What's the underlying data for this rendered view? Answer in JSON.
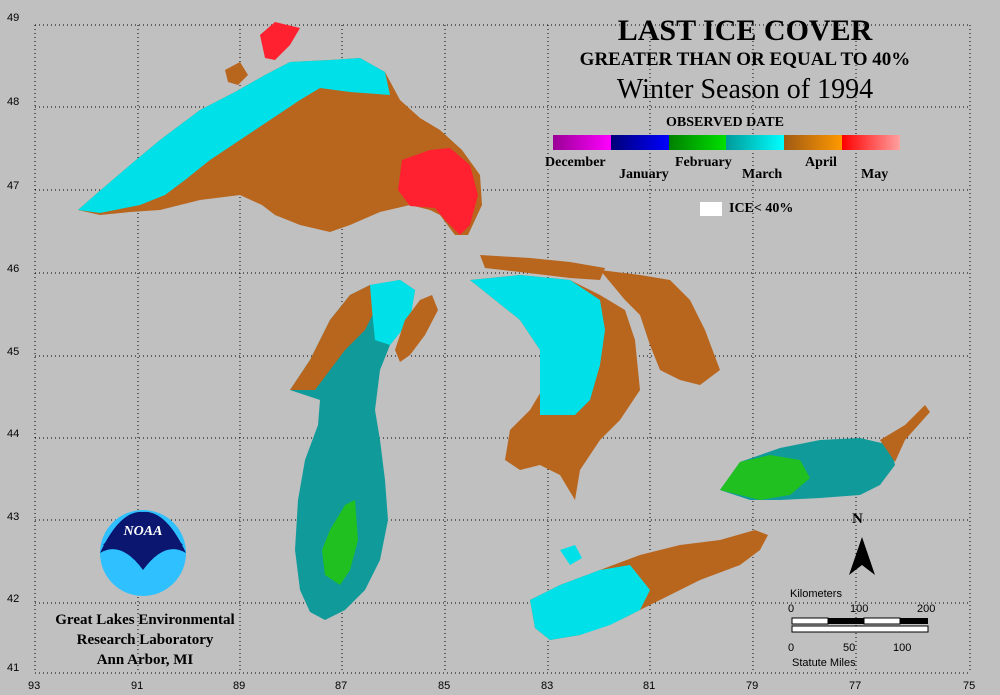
{
  "title": {
    "line1": "LAST ICE COVER",
    "line2": "GREATER THAN OR EQUAL TO 40%",
    "line3": "Winter Season of 1994"
  },
  "legend": {
    "heading": "OBSERVED DATE",
    "segments": [
      {
        "label": "December",
        "colors": [
          "#9a0096",
          "#ff00ff"
        ]
      },
      {
        "label": "January",
        "colors": [
          "#000078",
          "#0000ff"
        ]
      },
      {
        "label": "February",
        "colors": [
          "#008000",
          "#00e000"
        ]
      },
      {
        "label": "March",
        "colors": [
          "#009a9a",
          "#00ffff"
        ]
      },
      {
        "label": "April",
        "colors": [
          "#a05a14",
          "#ff9900"
        ]
      },
      {
        "label": "May",
        "colors": [
          "#ff0000",
          "#ffa0a0"
        ]
      }
    ],
    "ice_note": "ICE< 40%"
  },
  "latitudes": [
    "49",
    "48",
    "47",
    "46",
    "45",
    "44",
    "43",
    "42",
    "41"
  ],
  "longitudes": [
    "93",
    "91",
    "89",
    "87",
    "85",
    "83",
    "81",
    "79",
    "77",
    "75"
  ],
  "lab": {
    "line1": "Great Lakes Environmental",
    "line2": "Research Laboratory",
    "line3": "Ann Arbor, MI",
    "logo_text": "NOAA"
  },
  "north_label": "N",
  "scale": {
    "km_label": "Kilometers",
    "km_ticks": [
      "0",
      "100",
      "200"
    ],
    "mi_ticks": [
      "0",
      "50",
      "100"
    ],
    "mi_label": "Statute Miles"
  },
  "colors": {
    "background": "#c0c0c0",
    "march_light": "#00e0e8",
    "march_dark": "#119a9a",
    "april": "#b8651e",
    "may": "#ff2030",
    "february": "#20c020"
  }
}
